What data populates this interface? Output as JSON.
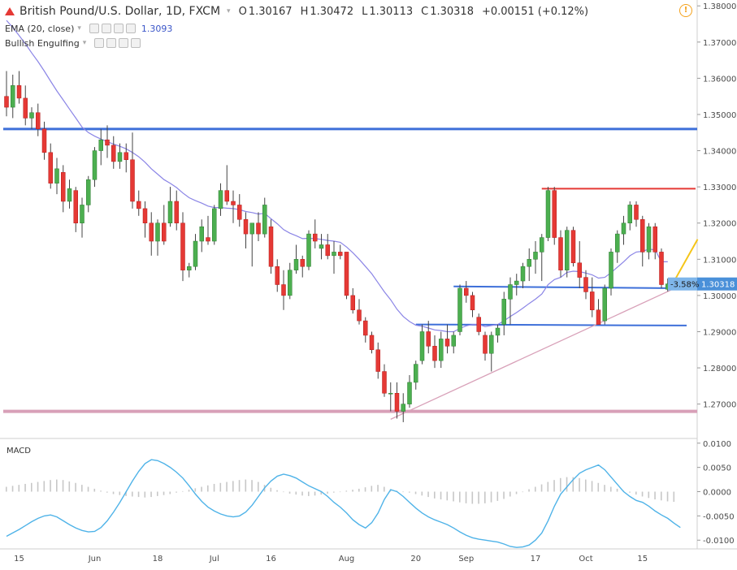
{
  "header": {
    "symbol_title": "British Pound/U.S. Dollar, 1D, FXCM",
    "open_label": "O",
    "open": "1.30167",
    "high_label": "H",
    "high": "1.30472",
    "low_label": "L",
    "low": "1.30113",
    "close_label": "C",
    "close": "1.30318",
    "change": "+0.00151 (+0.12%)"
  },
  "indicators": {
    "ema_label": "EMA (20, close)",
    "ema_value": "1.3093",
    "pattern_label": "Bullish Engulfing",
    "macd_label": "MACD"
  },
  "colors": {
    "up": "#4caf50",
    "down": "#e53935",
    "wick": "#444444",
    "ema": "#8b85e6",
    "macd": "#4fb3e8",
    "hist": "#c7c7c7",
    "support": "#3d6fd9",
    "resistance": "#e53935",
    "trend": "#d8a0b8",
    "target": "#f5c518",
    "price_tag": "#4a90d9"
  },
  "icons": {
    "warning": "warning-icon",
    "symbol_direction": "down-arrow-icon"
  },
  "chart_data": {
    "type": "candlestick",
    "title": "British Pound/U.S. Dollar, 1D, FXCM",
    "x_tick_labels": [
      "15",
      "Jun",
      "18",
      "Jul",
      "16",
      "Aug",
      "20",
      "Sep",
      "17",
      "Oct",
      "15"
    ],
    "y_tick_labels": [
      "1.27000",
      "1.28000",
      "1.29000",
      "1.30000",
      "1.31000",
      "1.32000",
      "1.33000",
      "1.34000",
      "1.35000",
      "1.36000",
      "1.37000",
      "1.38000"
    ],
    "ylim": [
      1.2605,
      1.3805
    ],
    "macd_tick_labels": [
      "-0.0100",
      "-0.0050",
      "0.0000",
      "0.0050",
      "0.0100"
    ],
    "macd_ylim": [
      -0.0118,
      0.0108
    ],
    "price_tag": "1.30318",
    "percent_tag": "-3.58%",
    "candles": [
      [
        1.355,
        1.362,
        1.3495,
        1.352
      ],
      [
        1.352,
        1.361,
        1.349,
        1.358
      ],
      [
        1.358,
        1.362,
        1.353,
        1.3545
      ],
      [
        1.3545,
        1.358,
        1.347,
        1.349
      ],
      [
        1.349,
        1.352,
        1.346,
        1.3505
      ],
      [
        1.3505,
        1.353,
        1.344,
        1.346
      ],
      [
        1.346,
        1.348,
        1.3375,
        1.3395
      ],
      [
        1.3395,
        1.342,
        1.3295,
        1.331
      ],
      [
        1.331,
        1.338,
        1.328,
        1.335
      ],
      [
        1.334,
        1.336,
        1.323,
        1.326
      ],
      [
        1.326,
        1.332,
        1.324,
        1.3295
      ],
      [
        1.329,
        1.33,
        1.3175,
        1.32
      ],
      [
        1.32,
        1.327,
        1.316,
        1.325
      ],
      [
        1.325,
        1.333,
        1.323,
        1.332
      ],
      [
        1.332,
        1.341,
        1.33,
        1.34
      ],
      [
        1.34,
        1.346,
        1.336,
        1.343
      ],
      [
        1.343,
        1.347,
        1.338,
        1.3415
      ],
      [
        1.3415,
        1.344,
        1.335,
        1.337
      ],
      [
        1.337,
        1.342,
        1.335,
        1.3395
      ],
      [
        1.3395,
        1.342,
        1.334,
        1.3375
      ],
      [
        1.3375,
        1.345,
        1.324,
        1.326
      ],
      [
        1.326,
        1.329,
        1.322,
        1.324
      ],
      [
        1.324,
        1.326,
        1.316,
        1.32
      ],
      [
        1.32,
        1.323,
        1.311,
        1.315
      ],
      [
        1.315,
        1.321,
        1.311,
        1.32
      ],
      [
        1.32,
        1.325,
        1.314,
        1.315
      ],
      [
        1.32,
        1.33,
        1.319,
        1.326
      ],
      [
        1.326,
        1.329,
        1.318,
        1.32
      ],
      [
        1.32,
        1.323,
        1.304,
        1.307
      ],
      [
        1.307,
        1.309,
        1.305,
        1.308
      ],
      [
        1.308,
        1.317,
        1.307,
        1.315
      ],
      [
        1.315,
        1.321,
        1.312,
        1.319
      ],
      [
        1.316,
        1.322,
        1.314,
        1.315
      ],
      [
        1.315,
        1.325,
        1.314,
        1.324
      ],
      [
        1.324,
        1.331,
        1.322,
        1.329
      ],
      [
        1.329,
        1.336,
        1.325,
        1.326
      ],
      [
        1.326,
        1.329,
        1.32,
        1.325
      ],
      [
        1.325,
        1.328,
        1.319,
        1.321
      ],
      [
        1.321,
        1.323,
        1.313,
        1.317
      ],
      [
        1.317,
        1.32,
        1.308,
        1.32
      ],
      [
        1.32,
        1.323,
        1.315,
        1.317
      ],
      [
        1.317,
        1.327,
        1.316,
        1.325
      ],
      [
        1.319,
        1.321,
        1.306,
        1.308
      ],
      [
        1.308,
        1.31,
        1.301,
        1.303
      ],
      [
        1.303,
        1.307,
        1.296,
        1.3
      ],
      [
        1.3,
        1.309,
        1.299,
        1.307
      ],
      [
        1.307,
        1.314,
        1.306,
        1.31
      ],
      [
        1.31,
        1.311,
        1.305,
        1.308
      ],
      [
        1.308,
        1.318,
        1.307,
        1.317
      ],
      [
        1.317,
        1.321,
        1.313,
        1.315
      ],
      [
        1.313,
        1.317,
        1.31,
        1.314
      ],
      [
        1.314,
        1.317,
        1.31,
        1.311
      ],
      [
        1.311,
        1.315,
        1.306,
        1.312
      ],
      [
        1.312,
        1.314,
        1.31,
        1.311
      ],
      [
        1.312,
        1.312,
        1.299,
        1.3
      ],
      [
        1.3,
        1.302,
        1.295,
        1.296
      ],
      [
        1.296,
        1.299,
        1.292,
        1.293
      ],
      [
        1.293,
        1.294,
        1.287,
        1.289
      ],
      [
        1.289,
        1.29,
        1.284,
        1.285
      ],
      [
        1.285,
        1.287,
        1.277,
        1.279
      ],
      [
        1.279,
        1.281,
        1.272,
        1.273
      ],
      [
        1.273,
        1.276,
        1.268,
        1.273
      ],
      [
        1.273,
        1.276,
        1.266,
        1.268
      ],
      [
        1.268,
        1.273,
        1.265,
        1.27
      ],
      [
        1.27,
        1.278,
        1.269,
        1.276
      ],
      [
        1.276,
        1.282,
        1.274,
        1.281
      ],
      [
        1.282,
        1.292,
        1.281,
        1.29
      ],
      [
        1.29,
        1.293,
        1.284,
        1.286
      ],
      [
        1.286,
        1.289,
        1.28,
        1.282
      ],
      [
        1.282,
        1.29,
        1.28,
        1.288
      ],
      [
        1.288,
        1.292,
        1.284,
        1.286
      ],
      [
        1.286,
        1.29,
        1.284,
        1.289
      ],
      [
        1.29,
        1.303,
        1.289,
        1.302
      ],
      [
        1.302,
        1.304,
        1.298,
        1.3
      ],
      [
        1.3,
        1.301,
        1.294,
        1.296
      ],
      [
        1.294,
        1.295,
        1.289,
        1.29
      ],
      [
        1.289,
        1.29,
        1.282,
        1.284
      ],
      [
        1.284,
        1.29,
        1.279,
        1.289
      ],
      [
        1.289,
        1.292,
        1.287,
        1.291
      ],
      [
        1.292,
        1.301,
        1.289,
        1.299
      ],
      [
        1.299,
        1.305,
        1.292,
        1.303
      ],
      [
        1.303,
        1.306,
        1.3,
        1.304
      ],
      [
        1.304,
        1.309,
        1.302,
        1.308
      ],
      [
        1.308,
        1.313,
        1.304,
        1.31
      ],
      [
        1.31,
        1.315,
        1.306,
        1.312
      ],
      [
        1.312,
        1.317,
        1.304,
        1.316
      ],
      [
        1.316,
        1.33,
        1.315,
        1.329
      ],
      [
        1.329,
        1.33,
        1.314,
        1.316
      ],
      [
        1.316,
        1.318,
        1.305,
        1.307
      ],
      [
        1.307,
        1.319,
        1.305,
        1.318
      ],
      [
        1.318,
        1.319,
        1.308,
        1.309
      ],
      [
        1.309,
        1.315,
        1.302,
        1.305
      ],
      [
        1.305,
        1.307,
        1.299,
        1.301
      ],
      [
        1.301,
        1.305,
        1.294,
        1.296
      ],
      [
        1.296,
        1.299,
        1.292,
        1.292
      ],
      [
        1.293,
        1.303,
        1.292,
        1.302
      ],
      [
        1.302,
        1.313,
        1.3,
        1.312
      ],
      [
        1.312,
        1.318,
        1.309,
        1.317
      ],
      [
        1.317,
        1.322,
        1.314,
        1.32
      ],
      [
        1.32,
        1.326,
        1.318,
        1.325
      ],
      [
        1.325,
        1.326,
        1.319,
        1.321
      ],
      [
        1.321,
        1.322,
        1.308,
        1.312
      ],
      [
        1.312,
        1.32,
        1.31,
        1.319
      ],
      [
        1.319,
        1.32,
        1.31,
        1.312
      ],
      [
        1.312,
        1.313,
        1.302,
        1.303
      ],
      [
        1.3017,
        1.3047,
        1.3011,
        1.3032
      ]
    ],
    "ema": [
      1.376,
      1.374,
      1.3718,
      1.3695,
      1.367,
      1.3646,
      1.362,
      1.3592,
      1.3565,
      1.354,
      1.3515,
      1.349,
      1.3465,
      1.345,
      1.344,
      1.3432,
      1.3425,
      1.3418,
      1.3412,
      1.3405,
      1.3395,
      1.3383,
      1.3368,
      1.335,
      1.3335,
      1.332,
      1.331,
      1.3298,
      1.3283,
      1.327,
      1.3262,
      1.3255,
      1.3247,
      1.3243,
      1.3243,
      1.3241,
      1.324,
      1.3237,
      1.3232,
      1.3229,
      1.3225,
      1.3227,
      1.3212,
      1.3198,
      1.3182,
      1.3172,
      1.3165,
      1.3157,
      1.3158,
      1.3157,
      1.3155,
      1.3152,
      1.315,
      1.3147,
      1.3134,
      1.3118,
      1.31,
      1.308,
      1.306,
      1.3035,
      1.301,
      1.2988,
      1.2962,
      1.2942,
      1.2928,
      1.2918,
      1.2915,
      1.291,
      1.2905,
      1.2903,
      1.29,
      1.29,
      1.2909,
      1.2916,
      1.292,
      1.292,
      1.2914,
      1.2917,
      1.292,
      1.293,
      1.2942,
      1.2953,
      1.2965,
      1.2978,
      1.299,
      1.3004,
      1.303,
      1.3044,
      1.305,
      1.3064,
      1.3067,
      1.3066,
      1.3062,
      1.3057,
      1.3048,
      1.305,
      1.3063,
      1.3078,
      1.3093,
      1.311,
      1.312,
      1.3122,
      1.3128,
      1.3126,
      1.3093,
      1.3093
    ],
    "macd_line": [
      -0.0092,
      -0.0085,
      -0.0078,
      -0.007,
      -0.0062,
      -0.0055,
      -0.005,
      -0.0048,
      -0.0052,
      -0.006,
      -0.0068,
      -0.0075,
      -0.008,
      -0.0083,
      -0.0082,
      -0.0074,
      -0.006,
      -0.0042,
      -0.0022,
      0.0,
      0.0022,
      0.0042,
      0.0058,
      0.0066,
      0.0064,
      0.0058,
      0.005,
      0.004,
      0.0028,
      0.0012,
      -0.0005,
      -0.002,
      -0.0032,
      -0.004,
      -0.0046,
      -0.005,
      -0.0052,
      -0.005,
      -0.0042,
      -0.0028,
      -0.001,
      0.0008,
      0.0022,
      0.0032,
      0.0036,
      0.0033,
      0.0028,
      0.002,
      0.0012,
      0.0006,
      0.0,
      -0.001,
      -0.0022,
      -0.0032,
      -0.0044,
      -0.0058,
      -0.0068,
      -0.0075,
      -0.0064,
      -0.0044,
      -0.0016,
      0.0004,
      0.0,
      -0.001,
      -0.0022,
      -0.0034,
      -0.0044,
      -0.0052,
      -0.0058,
      -0.0063,
      -0.0068,
      -0.0075,
      -0.0083,
      -0.009,
      -0.0095,
      -0.0098,
      -0.01,
      -0.0102,
      -0.0104,
      -0.0108,
      -0.0113,
      -0.0115,
      -0.0114,
      -0.011,
      -0.01,
      -0.0085,
      -0.006,
      -0.003,
      -0.0005,
      0.001,
      0.0025,
      0.0038,
      0.0045,
      0.005,
      0.0055,
      0.0045,
      0.003,
      0.0015,
      0.0,
      -0.001,
      -0.0018,
      -0.0022,
      -0.003,
      -0.004,
      -0.0048,
      -0.0055,
      -0.0065,
      -0.0074
    ],
    "macd_histogram": [
      0.001,
      0.0012,
      0.0014,
      0.0016,
      0.0018,
      0.002,
      0.0022,
      0.0024,
      0.0025,
      0.0024,
      0.0021,
      0.0018,
      0.0014,
      0.001,
      0.0006,
      0.0002,
      -0.0002,
      -0.0005,
      -0.0007,
      -0.0009,
      -0.001,
      -0.0011,
      -0.0012,
      -0.0011,
      -0.0009,
      -0.0007,
      -0.0005,
      -0.0002,
      0.0001,
      0.0004,
      0.0007,
      0.001,
      0.0013,
      0.0016,
      0.0018,
      0.002,
      0.0022,
      0.0024,
      0.0025,
      0.0024,
      0.002,
      0.0014,
      0.0008,
      0.0003,
      -0.0001,
      -0.0004,
      -0.0006,
      -0.0008,
      -0.0009,
      -0.0008,
      -0.0006,
      -0.0004,
      -0.0002,
      0.0,
      0.0002,
      0.0004,
      0.0006,
      0.0009,
      0.0012,
      0.0014,
      0.001,
      0.0005,
      0.0002,
      0.0,
      -0.0002,
      -0.0005,
      -0.0008,
      -0.0011,
      -0.0014,
      -0.0016,
      -0.0018,
      -0.002,
      -0.0022,
      -0.0024,
      -0.0025,
      -0.0025,
      -0.0024,
      -0.0022,
      -0.0019,
      -0.0015,
      -0.001,
      -0.0005,
      0.0,
      0.0005,
      0.001,
      0.0015,
      0.002,
      0.0024,
      0.0028,
      0.003,
      0.003,
      0.0028,
      0.0025,
      0.0022,
      0.0018,
      0.0014,
      0.001,
      0.0006,
      0.0002,
      -0.0002,
      -0.0006,
      -0.001,
      -0.0013,
      -0.0016,
      -0.0018,
      -0.002,
      -0.0021
    ]
  }
}
